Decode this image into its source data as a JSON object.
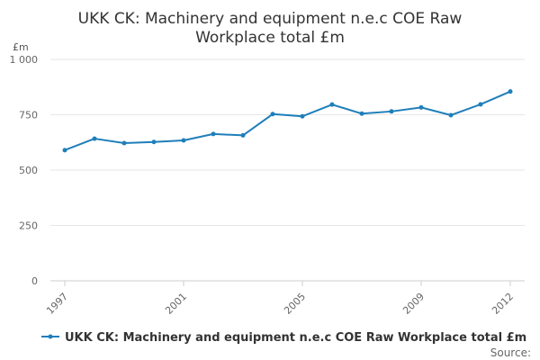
{
  "chart_data": {
    "type": "line",
    "title": "UKK CK: Machinery and equipment n.e.c COE Raw Workplace total £m",
    "title_lines": [
      "UKK CK: Machinery and equipment n.e.c COE Raw",
      "Workplace total £m"
    ],
    "ylabel": "£m",
    "xlabel": "",
    "ylim": [
      0,
      1000
    ],
    "yticks": [
      0,
      250,
      500,
      750,
      1000
    ],
    "ytick_labels": [
      "0",
      "250",
      "500",
      "750",
      "1 000"
    ],
    "xlim": [
      1997,
      2012
    ],
    "xticks": [
      1997,
      2001,
      2005,
      2009,
      2012
    ],
    "xtick_labels": [
      "1997",
      "2001",
      "2005",
      "2009",
      "2012"
    ],
    "grid": true,
    "legend_position": "bottom",
    "series": [
      {
        "name": "UKK CK: Machinery and equipment n.e.c COE Raw Workplace total £m",
        "color": "#1f7fba",
        "x": [
          1997,
          1998,
          1999,
          2000,
          2001,
          2002,
          2003,
          2004,
          2005,
          2006,
          2007,
          2008,
          2009,
          2010,
          2011,
          2012
        ],
        "values": [
          590,
          642,
          622,
          627,
          634,
          663,
          657,
          753,
          743,
          796,
          755,
          765,
          783,
          748,
          797,
          855
        ]
      }
    ]
  },
  "footer": {
    "source_label": "Source:"
  }
}
